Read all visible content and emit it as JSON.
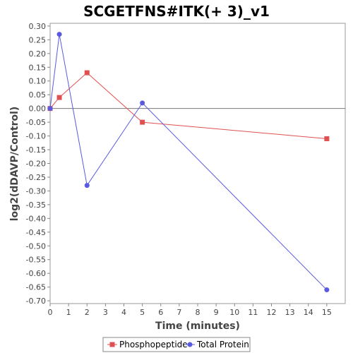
{
  "chart_data": {
    "type": "line",
    "title": "SCGETFNS#ITK(+ 3)_v1",
    "xlabel": "Time (minutes)",
    "ylabel": "log2(dDAVP/Control)",
    "xlim": [
      0,
      16
    ],
    "ylim": [
      -0.71,
      0.31
    ],
    "x_ticks": [
      0,
      1,
      2,
      3,
      4,
      5,
      6,
      7,
      8,
      9,
      10,
      11,
      12,
      13,
      14,
      15
    ],
    "x_tick_labels": [
      "0",
      "1",
      "2",
      "3",
      "4",
      "5",
      "6",
      "7",
      "8",
      "9",
      "10",
      "11",
      "12",
      "13",
      "14",
      "15"
    ],
    "y_ticks": [
      0.3,
      0.25,
      0.2,
      0.15,
      0.1,
      0.05,
      0.0,
      -0.05,
      -0.1,
      -0.15,
      -0.2,
      -0.25,
      -0.3,
      -0.35,
      -0.4,
      -0.45,
      -0.5,
      -0.55,
      -0.6,
      -0.65,
      -0.7
    ],
    "y_tick_labels": [
      "0.30",
      "0.25",
      "0.20",
      "0.15",
      "0.10",
      "0.05",
      "0.00",
      "-0.05",
      "-0.10",
      "-0.15",
      "-0.20",
      "-0.25",
      "-0.30",
      "-0.35",
      "-0.40",
      "-0.45",
      "-0.50",
      "-0.55",
      "-0.60",
      "-0.65",
      "-0.70"
    ],
    "zero_line": true,
    "grid": false,
    "legend_position": "bottom",
    "series": [
      {
        "name": "Phosphopeptide",
        "color": "#e05050",
        "marker": "square",
        "x": [
          0,
          0.5,
          2,
          5,
          15
        ],
        "y": [
          0.0,
          0.04,
          0.13,
          -0.05,
          -0.11
        ]
      },
      {
        "name": "Total Protein",
        "color": "#5a5ae0",
        "marker": "circle",
        "x": [
          0,
          0.5,
          2,
          5,
          15
        ],
        "y": [
          0.0,
          0.27,
          -0.28,
          0.02,
          -0.66
        ]
      }
    ]
  }
}
